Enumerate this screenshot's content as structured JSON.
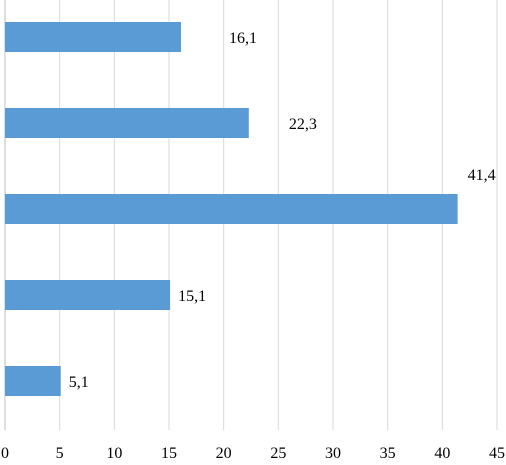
{
  "chart_data": {
    "type": "bar",
    "orientation": "horizontal",
    "values": [
      5.1,
      15.1,
      41.4,
      22.3,
      16.1
    ],
    "data_labels": [
      "5,1",
      "15,1",
      "41,4",
      "22,3",
      "16,1"
    ],
    "xlim": [
      0,
      45
    ],
    "xticks": [
      0,
      5,
      10,
      15,
      20,
      25,
      30,
      35,
      40,
      45
    ],
    "xtick_labels": [
      "0",
      "5",
      "10",
      "15",
      "20",
      "25",
      "30",
      "35",
      "40",
      "45"
    ],
    "grid": "vertical",
    "legend": "none",
    "bar_color": "#5b9bd5",
    "grid_color": "#d9d9d9"
  }
}
